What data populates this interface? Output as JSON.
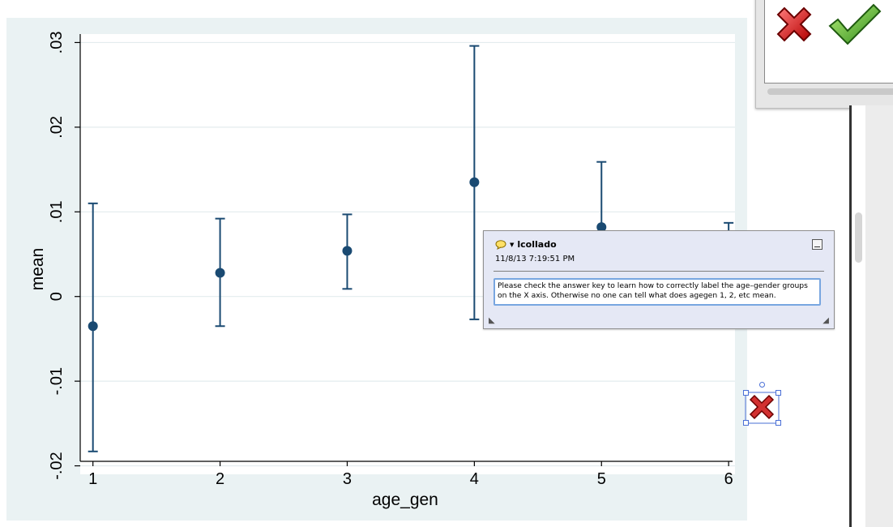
{
  "chart_data": {
    "type": "scatter",
    "xlabel": "age_gen",
    "ylabel": "mean",
    "x_ticks": [
      "1",
      "2",
      "3",
      "4",
      "5",
      "6"
    ],
    "y_ticks": [
      ".03",
      ".02",
      ".01",
      "0",
      "-.01",
      "-.02"
    ],
    "ylim": [
      -0.021,
      0.031
    ],
    "xlim": [
      0.9,
      6.05
    ],
    "grid": true,
    "points": [
      {
        "x": 1,
        "mean": -0.0035,
        "low": -0.0183,
        "high": 0.011
      },
      {
        "x": 2,
        "mean": 0.0028,
        "low": -0.0035,
        "high": 0.0092
      },
      {
        "x": 3,
        "mean": 0.0054,
        "low": 0.0009,
        "high": 0.0097
      },
      {
        "x": 4,
        "mean": 0.0135,
        "low": -0.0027,
        "high": 0.0296
      },
      {
        "x": 5,
        "mean": 0.0082,
        "low": 0.006,
        "high": 0.0159
      },
      {
        "x": 6,
        "mean": 0.006,
        "low": 0.0035,
        "high": 0.0087
      }
    ],
    "colors": {
      "marker": "#1a4a72",
      "background": "#eaf2f3",
      "grid": "#ffffff"
    }
  },
  "comment": {
    "author": "lcollado",
    "timestamp": "11/8/13 7:19:51 PM",
    "text": "Please check the answer key to learn how to correctly label the age–gender groups on the X axis. Otherwise no one can tell what does agegen 1, 2, etc mean."
  },
  "toolbar": {
    "reject_icon": "red-x-icon",
    "accept_icon": "green-check-icon"
  }
}
